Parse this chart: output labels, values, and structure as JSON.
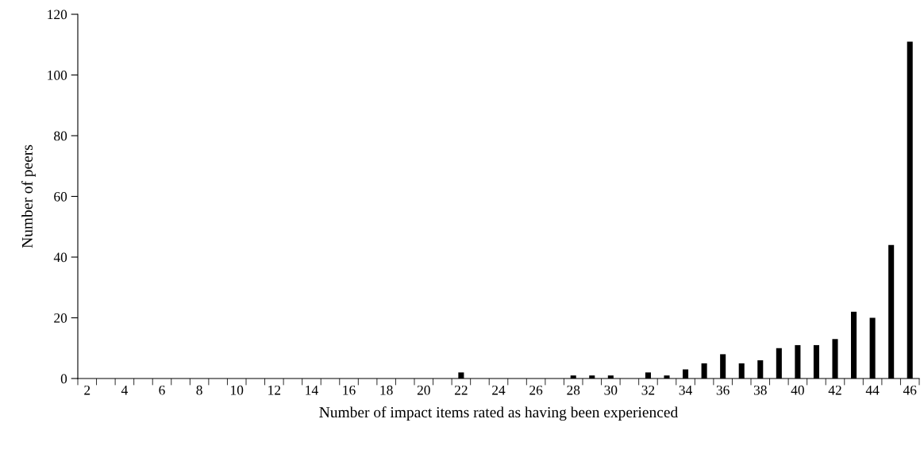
{
  "chart_data": {
    "type": "bar",
    "xlabel": "Number of impact items rated as having been experienced",
    "ylabel": "Number of peers",
    "categories": [
      "2",
      null,
      "4",
      null,
      "6",
      null,
      "8",
      null,
      "10",
      null,
      "12",
      null,
      "14",
      null,
      "16",
      null,
      "18",
      null,
      "20",
      null,
      "22",
      null,
      "24",
      null,
      "26",
      null,
      "28",
      null,
      "30",
      null,
      "32",
      null,
      "34",
      null,
      "36",
      null,
      "38",
      null,
      "40",
      null,
      "42",
      null,
      "44",
      null,
      "46"
    ],
    "values": [
      0,
      0,
      0,
      0,
      0,
      0,
      0,
      0,
      0,
      0,
      0,
      0,
      0,
      0,
      0,
      0,
      0,
      0,
      0,
      0,
      2,
      0,
      0,
      0,
      0,
      0,
      1,
      1,
      1,
      0,
      2,
      1,
      3,
      5,
      8,
      5,
      6,
      10,
      11,
      11,
      13,
      22,
      20,
      44,
      111
    ],
    "color": "#000000",
    "ylim": [
      0,
      120
    ],
    "yticks": [
      0,
      20,
      40,
      60,
      80,
      100,
      120
    ],
    "grid": false,
    "legend": false
  }
}
